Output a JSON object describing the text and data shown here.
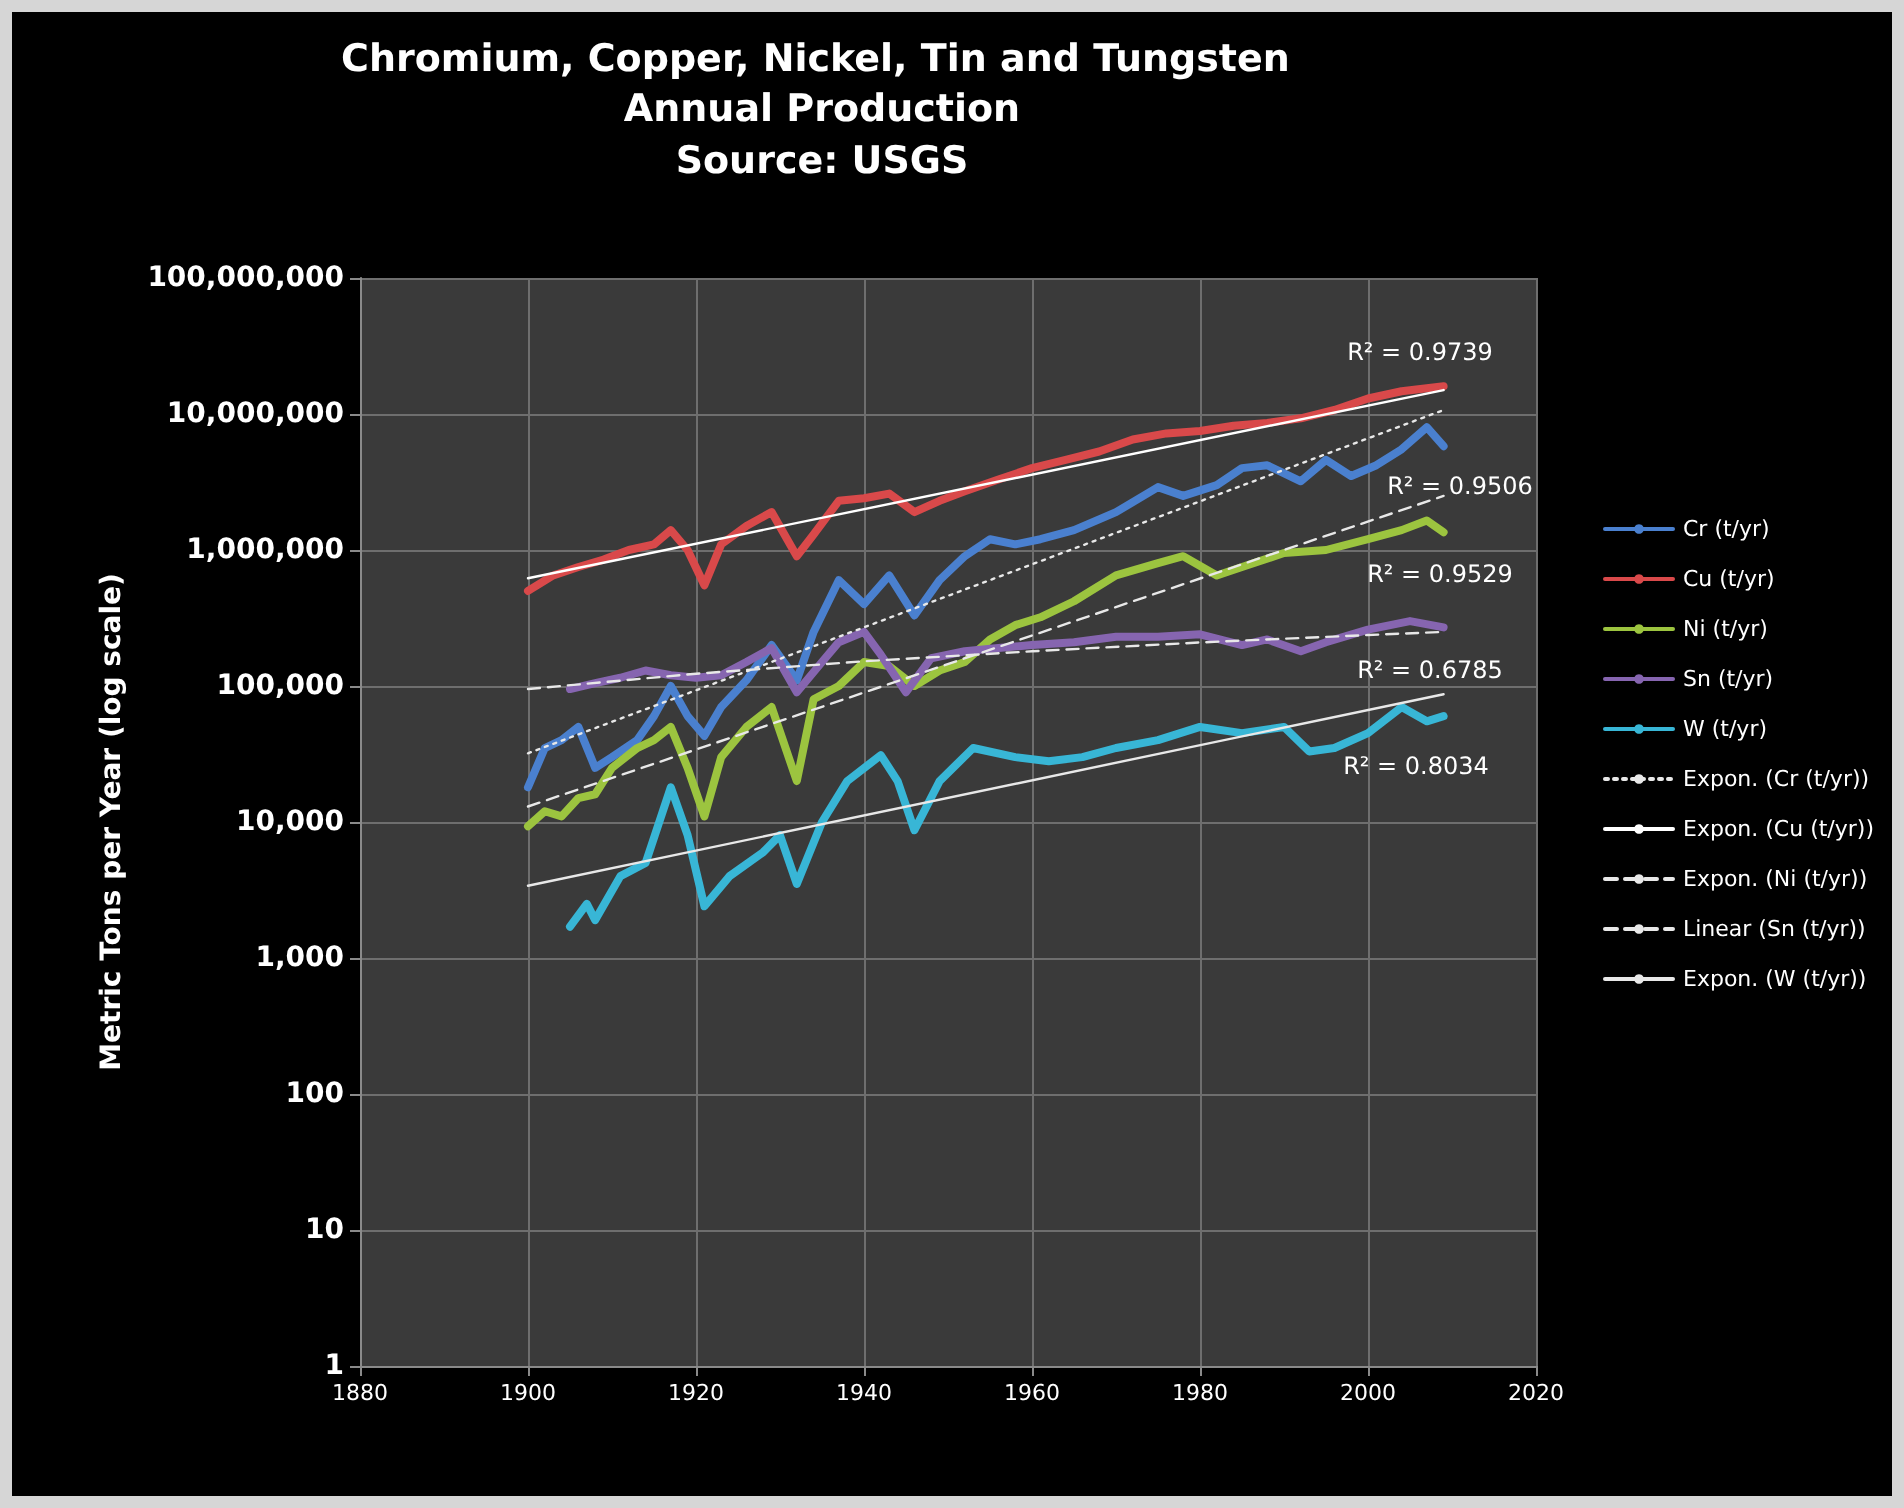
{
  "chart_data": {
    "type": "line",
    "title": "Chromium, Copper, Nickel, Tin and Tungsten Annual Production",
    "subtitle": "Source: USGS",
    "ylabel": "Metric Tons per Year (log scale)",
    "xlim": [
      1880,
      2020
    ],
    "xticks": [
      1880,
      1900,
      1920,
      1940,
      1960,
      1980,
      2000,
      2020
    ],
    "ylim": [
      1,
      100000000
    ],
    "yticks": [
      {
        "value": 1,
        "label": "1"
      },
      {
        "value": 10,
        "label": "10"
      },
      {
        "value": 100,
        "label": "100"
      },
      {
        "value": 1000,
        "label": "1,000"
      },
      {
        "value": 10000,
        "label": "10,000"
      },
      {
        "value": 100000,
        "label": "100,000"
      },
      {
        "value": 1000000,
        "label": "1,000,000"
      },
      {
        "value": 10000000,
        "label": "10,000,000"
      },
      {
        "value": 100000000,
        "label": "100,000,000"
      }
    ],
    "log": "y",
    "grid": true,
    "legend": "right",
    "marker": "none",
    "series": [
      {
        "name": "Cr (t/yr)",
        "color": "#4a80cf",
        "x": [
          1900,
          1902,
          1904,
          1906,
          1908,
          1910,
          1913,
          1915,
          1917,
          1919,
          1921,
          1923,
          1926,
          1929,
          1932,
          1934,
          1937,
          1940,
          1943,
          1946,
          1949,
          1952,
          1955,
          1958,
          1961,
          1965,
          1970,
          1975,
          1978,
          1982,
          1985,
          1988,
          1992,
          1995,
          1998,
          2001,
          2004,
          2007,
          2009
        ],
        "values": [
          18000,
          35000,
          40000,
          50000,
          25000,
          30000,
          40000,
          60000,
          100000,
          60000,
          43000,
          70000,
          110000,
          200000,
          110000,
          250000,
          600000,
          400000,
          650000,
          330000,
          600000,
          900000,
          1200000,
          1100000,
          1200000,
          1400000,
          1900000,
          2900000,
          2500000,
          3000000,
          4000000,
          4200000,
          3200000,
          4600000,
          3500000,
          4200000,
          5500000,
          8000000,
          5800000
        ]
      },
      {
        "name": "Cu (t/yr)",
        "color": "#d9494a",
        "x": [
          1900,
          1903,
          1906,
          1909,
          1912,
          1915,
          1917,
          1919,
          1921,
          1923,
          1926,
          1929,
          1932,
          1934,
          1937,
          1940,
          1943,
          1946,
          1949,
          1952,
          1956,
          1960,
          1964,
          1968,
          1972,
          1976,
          1980,
          1984,
          1988,
          1992,
          1996,
          2000,
          2004,
          2009
        ],
        "values": [
          500000,
          650000,
          750000,
          850000,
          1000000,
          1100000,
          1400000,
          1000000,
          550000,
          1100000,
          1500000,
          1900000,
          900000,
          1300000,
          2300000,
          2400000,
          2600000,
          1900000,
          2300000,
          2700000,
          3300000,
          4000000,
          4600000,
          5300000,
          6500000,
          7200000,
          7500000,
          8200000,
          8600000,
          9300000,
          10700000,
          13000000,
          14700000,
          16000000
        ]
      },
      {
        "name": "Ni (t/yr)",
        "color": "#9cc43f",
        "x": [
          1900,
          1902,
          1904,
          1906,
          1908,
          1910,
          1913,
          1915,
          1917,
          1919,
          1921,
          1923,
          1926,
          1929,
          1932,
          1934,
          1937,
          1940,
          1943,
          1946,
          1949,
          1952,
          1955,
          1958,
          1961,
          1965,
          1970,
          1975,
          1978,
          1982,
          1985,
          1990,
          1995,
          2000,
          2004,
          2007,
          2009
        ],
        "values": [
          9300,
          12000,
          11000,
          15000,
          16000,
          25000,
          35000,
          40000,
          50000,
          25000,
          11000,
          30000,
          50000,
          70000,
          20000,
          80000,
          100000,
          150000,
          140000,
          100000,
          130000,
          150000,
          220000,
          280000,
          320000,
          420000,
          650000,
          800000,
          900000,
          650000,
          750000,
          950000,
          1000000,
          1200000,
          1400000,
          1650000,
          1350000
        ]
      },
      {
        "name": "Sn (t/yr)",
        "color": "#8665b0",
        "x": [
          1905,
          1908,
          1911,
          1914,
          1917,
          1920,
          1923,
          1926,
          1929,
          1932,
          1935,
          1937,
          1940,
          1942,
          1945,
          1948,
          1952,
          1956,
          1960,
          1965,
          1970,
          1975,
          1980,
          1985,
          1988,
          1992,
          1995,
          2000,
          2005,
          2009
        ],
        "values": [
          95000,
          105000,
          115000,
          130000,
          120000,
          115000,
          120000,
          150000,
          190000,
          90000,
          150000,
          210000,
          250000,
          170000,
          90000,
          160000,
          180000,
          190000,
          200000,
          210000,
          230000,
          230000,
          240000,
          200000,
          220000,
          180000,
          210000,
          260000,
          300000,
          270000
        ]
      },
      {
        "name": "W (t/yr)",
        "color": "#38b6d6",
        "x": [
          1905,
          1907,
          1908,
          1911,
          1914,
          1917,
          1919,
          1921,
          1924,
          1928,
          1930,
          1932,
          1935,
          1938,
          1942,
          1944,
          1946,
          1949,
          1953,
          1958,
          1962,
          1966,
          1970,
          1975,
          1980,
          1985,
          1990,
          1993,
          1996,
          2000,
          2004,
          2007,
          2009
        ],
        "values": [
          1700,
          2500,
          1900,
          4000,
          5000,
          18000,
          8000,
          2400,
          4000,
          6000,
          8000,
          3500,
          10000,
          20000,
          31000,
          20000,
          8700,
          20000,
          35000,
          30000,
          28000,
          30000,
          35000,
          40000,
          50000,
          45000,
          50000,
          33000,
          35000,
          45000,
          70000,
          55000,
          60000
        ]
      },
      {
        "name": "Expon. (Cr (t/yr))",
        "color": "#e8e8e8",
        "line_style": "dotted",
        "x": [
          1900,
          2009
        ],
        "values": [
          32000,
          10700000
        ]
      },
      {
        "name": "Expon. (Cu (t/yr))",
        "color": "#ffffff",
        "line_style": "solid",
        "x": [
          1900,
          2009
        ],
        "values": [
          620000,
          15000000
        ]
      },
      {
        "name": "Expon. (Ni (t/yr))",
        "color": "#e8e8e8",
        "line_style": "dashed",
        "x": [
          1900,
          2009
        ],
        "values": [
          13000,
          2500000
        ]
      },
      {
        "name": "Linear (Sn (t/yr))",
        "color": "#e8e8e8",
        "line_style": "dashed",
        "x": [
          1900,
          1920,
          1940,
          1960,
          1980,
          2000,
          2009
        ],
        "values": [
          95000,
          123000,
          152000,
          180000,
          209000,
          237000,
          250000
        ]
      },
      {
        "name": "Expon. (W (t/yr))",
        "color": "#e8e8e8",
        "line_style": "solid",
        "x": [
          1900,
          2009
        ],
        "values": [
          3400,
          87000
        ]
      }
    ],
    "annotations": [
      "R² = 0.9739",
      "R² = 0.9506",
      "R² = 0.9529",
      "R² = 0.6785",
      "R² = 0.8034"
    ]
  }
}
